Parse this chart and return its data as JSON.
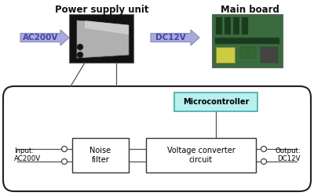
{
  "fig_width": 4.0,
  "fig_height": 2.5,
  "dpi": 100,
  "bg_color": "#ffffff",
  "title_psu": "Power supply unit",
  "title_mb": "Main board",
  "label_ac200v": "AC200V",
  "label_dc12v": "DC12V",
  "label_input": "Input:\nAC200V",
  "label_output": "Output:\nDC12V",
  "label_noise": "Noise\nfilter",
  "label_voltage": "Voltage converter\ncircuit",
  "label_micro": "Microcontroller",
  "arrow_color": "#aaaadd",
  "arrow_edge_color": "#8888bb",
  "box_outline": "#333333",
  "micro_fill": "#b8f0f0",
  "micro_edge": "#44aaaa",
  "line_color": "#555555",
  "text_arrow_color": "#4444aa",
  "psu_bg": "#111111",
  "psu_body": "#b0b0b0",
  "psu_shine": "#d8d8d8",
  "mb_bg": "#3a6b3e",
  "mb_slot": "#1a3a1e",
  "mb_chip": "#cccc44"
}
